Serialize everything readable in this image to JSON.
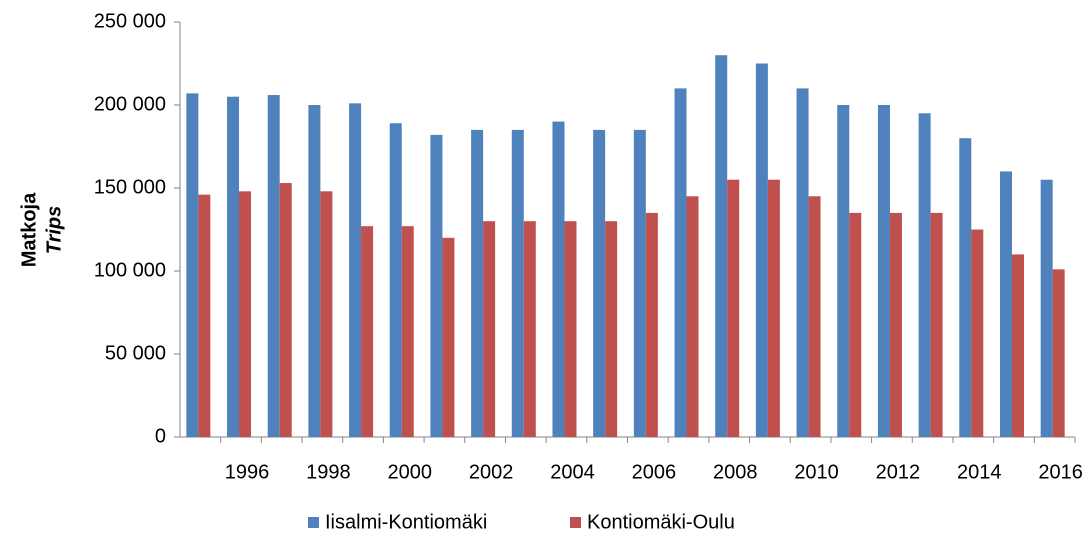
{
  "chart_data": {
    "type": "bar",
    "ylabel": "Matkoja",
    "ylabel_sub": "Trips",
    "categories": [
      null,
      "1996",
      null,
      "1998",
      null,
      "2000",
      null,
      "2002",
      null,
      "2004",
      null,
      "2006",
      null,
      "2008",
      null,
      "2010",
      null,
      "2012",
      null,
      "2014",
      null,
      "2016"
    ],
    "series": [
      {
        "name": "Iisalmi-Kontiomäki",
        "color": "#4f81bd",
        "values": [
          207000,
          205000,
          206000,
          200000,
          201000,
          189000,
          182000,
          185000,
          185000,
          190000,
          185000,
          185000,
          210000,
          230000,
          225000,
          210000,
          200000,
          200000,
          195000,
          180000,
          160000,
          155000
        ]
      },
      {
        "name": "Kontiomäki-Oulu",
        "color": "#c0504d",
        "values": [
          146000,
          148000,
          153000,
          148000,
          127000,
          127000,
          120000,
          130000,
          130000,
          130000,
          130000,
          135000,
          145000,
          155000,
          155000,
          145000,
          135000,
          135000,
          135000,
          125000,
          110000,
          101000
        ]
      }
    ],
    "ylim": [
      0,
      250000
    ],
    "yticks": [
      0,
      {
        "value": 50000,
        "label": "50 000"
      },
      {
        "value": 100000,
        "label": "100 000"
      },
      {
        "value": 150000,
        "label": "150 000"
      },
      {
        "value": 200000,
        "label": "200 000"
      },
      {
        "value": 250000,
        "label": "250 000"
      }
    ],
    "grid": false,
    "legend": "bottom"
  }
}
